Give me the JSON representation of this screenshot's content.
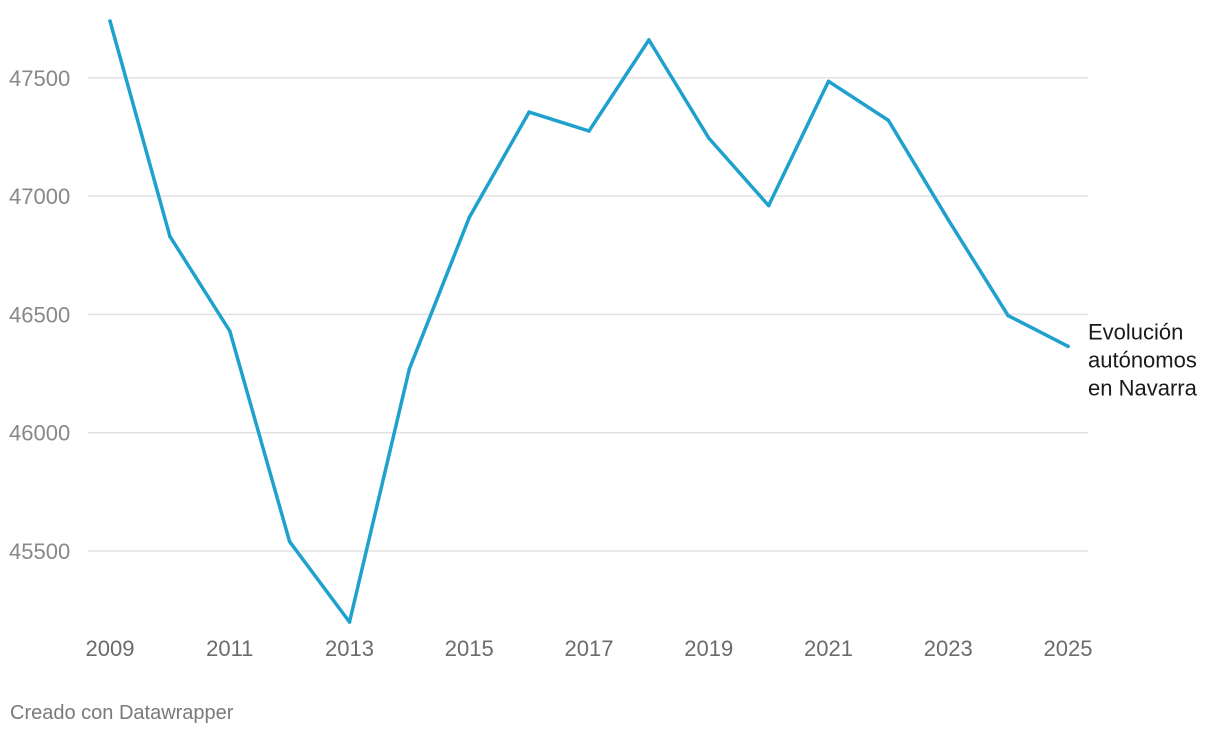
{
  "chart_data": {
    "type": "line",
    "title": "",
    "xlabel": "",
    "ylabel": "",
    "x": [
      2009,
      2010,
      2011,
      2012,
      2013,
      2014,
      2015,
      2016,
      2017,
      2018,
      2019,
      2020,
      2021,
      2022,
      2023,
      2024,
      2025
    ],
    "series": [
      {
        "name": "Evolución autónomos en Navarra",
        "label_lines": [
          "Evolución",
          "autónomos",
          "en Navarra"
        ],
        "color": "#1fa1ce",
        "values": [
          47740,
          46830,
          46430,
          45540,
          45200,
          46270,
          46910,
          47355,
          47275,
          47660,
          47245,
          46960,
          47485,
          47320,
          46900,
          46495,
          46365
        ]
      }
    ],
    "xticks": [
      2009,
      2011,
      2013,
      2015,
      2017,
      2019,
      2021,
      2023,
      2025
    ],
    "yticks": [
      45500,
      46000,
      46500,
      47000,
      47500
    ],
    "ylim": [
      45200,
      47740
    ],
    "grid": true,
    "legend": "direct-label-right"
  },
  "credit": "Creado con Datawrapper"
}
